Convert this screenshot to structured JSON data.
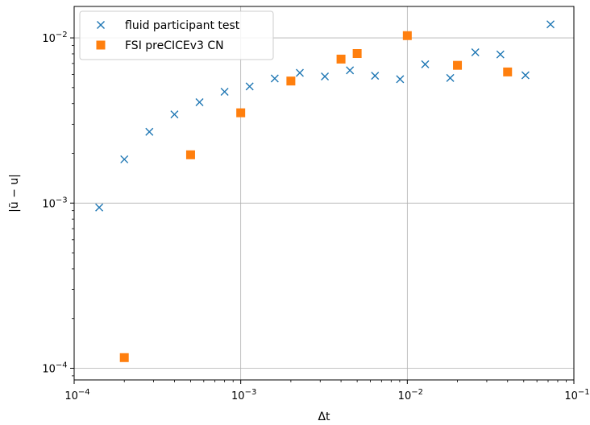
{
  "chart_data": {
    "type": "scatter",
    "title": "",
    "xlabel": "Δt",
    "ylabel": "|ũ − u|",
    "xscale": "log",
    "yscale": "log",
    "xlim": [
      0.0001,
      0.1
    ],
    "ylim": [
      8.5e-05,
      0.0155
    ],
    "grid": "major",
    "legend_position": "top-left",
    "x_tick_labels": [
      {
        "value": 0.0001,
        "base": "10",
        "exp": "−4"
      },
      {
        "value": 0.001,
        "base": "10",
        "exp": "−3"
      },
      {
        "value": 0.01,
        "base": "10",
        "exp": "−2"
      },
      {
        "value": 0.1,
        "base": "10",
        "exp": "−1"
      }
    ],
    "y_tick_labels": [
      {
        "value": 0.0001,
        "base": "10",
        "exp": "−4"
      },
      {
        "value": 0.001,
        "base": "10",
        "exp": "−3"
      },
      {
        "value": 0.01,
        "base": "10",
        "exp": "−2"
      }
    ],
    "series": [
      {
        "name": "fluid participant test",
        "marker": "x",
        "color": "#1f77b4",
        "points": [
          [
            0.0001414,
            0.00094
          ],
          [
            0.0002,
            0.00184
          ],
          [
            0.0002828,
            0.0027
          ],
          [
            0.0004,
            0.00344
          ],
          [
            0.0005657,
            0.00408
          ],
          [
            0.0008,
            0.00472
          ],
          [
            0.001131,
            0.00508
          ],
          [
            0.0016,
            0.00568
          ],
          [
            0.002263,
            0.00614
          ],
          [
            0.0032,
            0.00584
          ],
          [
            0.004525,
            0.00636
          ],
          [
            0.0064,
            0.0059
          ],
          [
            0.00905,
            0.00562
          ],
          [
            0.0128,
            0.00692
          ],
          [
            0.0181,
            0.00572
          ],
          [
            0.0256,
            0.00818
          ],
          [
            0.0362,
            0.00794
          ],
          [
            0.0512,
            0.00594
          ],
          [
            0.0724,
            0.01208
          ]
        ]
      },
      {
        "name": "FSI preCICEv3 CN",
        "marker": "square",
        "color": "#ff7f0e",
        "points": [
          [
            0.0002,
            0.000116
          ],
          [
            0.0005,
            0.00196
          ],
          [
            0.001,
            0.00352
          ],
          [
            0.002,
            0.00548
          ],
          [
            0.004,
            0.00744
          ],
          [
            0.005,
            0.00804
          ],
          [
            0.01,
            0.01032
          ],
          [
            0.02,
            0.00682
          ],
          [
            0.04,
            0.00622
          ]
        ]
      }
    ]
  }
}
